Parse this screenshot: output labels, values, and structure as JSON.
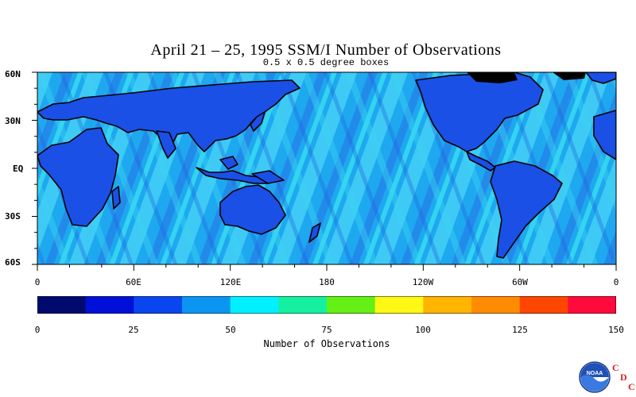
{
  "title": "April 21 – 25, 1995 SSM/I Number of Observations",
  "subtitle": "0.5 x 0.5 degree boxes",
  "lat_labels": [
    "60N",
    "30N",
    "EQ",
    "30S",
    "60S"
  ],
  "lon_labels": [
    "0",
    "60E",
    "120E",
    "180",
    "120W",
    "60W",
    "0"
  ],
  "colorbar": {
    "label": "Number of Observations",
    "tick_labels": [
      "0",
      "25",
      "50",
      "75",
      "100",
      "125",
      "150"
    ],
    "colors": [
      "#000a6e",
      "#0010d8",
      "#0a46f0",
      "#0a96f0",
      "#00f0ff",
      "#14f0a0",
      "#64f014",
      "#fff814",
      "#ffb400",
      "#ff8c00",
      "#ff4600",
      "#ff0a3c"
    ]
  },
  "map_colors": {
    "ocean_mid": "#1ea8f0",
    "ocean_light": "#46d2f5",
    "ocean_dark": "#2060e0",
    "ocean_cyan": "#3ee6f0",
    "ocean_green": "#40e6a8",
    "land": "#1a50e6",
    "coast": "#000000"
  },
  "logo": {
    "org_text": "NOAA",
    "letters": [
      "C",
      "D",
      "C"
    ]
  }
}
